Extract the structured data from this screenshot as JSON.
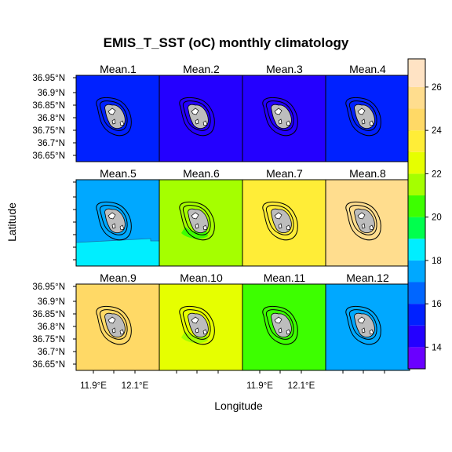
{
  "chart_data": {
    "type": "heatmap",
    "title": "EMIS_T_SST (oC) monthly climatology",
    "xlabel": "Longitude",
    "ylabel": "Latitude",
    "x_ticks": [
      "11.9°E",
      "12.1°E"
    ],
    "y_ticks": [
      "36.95°N",
      "36.9°N",
      "36.85°N",
      "36.8°N",
      "36.75°N",
      "36.7°N",
      "36.65°N"
    ],
    "colorbar": {
      "ticks": [
        14,
        16,
        18,
        20,
        22,
        24,
        26
      ],
      "range": [
        13,
        27.3
      ],
      "levels": [
        {
          "from": 13,
          "to": 14,
          "color": "#6a00ff"
        },
        {
          "from": 14,
          "to": 15,
          "color": "#2400ff"
        },
        {
          "from": 15,
          "to": 16,
          "color": "#0021ff"
        },
        {
          "from": 16,
          "to": 17,
          "color": "#0066ff"
        },
        {
          "from": 17,
          "to": 18,
          "color": "#00a8ff"
        },
        {
          "from": 18,
          "to": 19,
          "color": "#00eeff"
        },
        {
          "from": 19,
          "to": 20,
          "color": "#00ff4d"
        },
        {
          "from": 20,
          "to": 21,
          "color": "#3dff00"
        },
        {
          "from": 21,
          "to": 22,
          "color": "#a5ff00"
        },
        {
          "from": 22,
          "to": 23,
          "color": "#e6ff00"
        },
        {
          "from": 23,
          "to": 24,
          "color": "#ffed37"
        },
        {
          "from": 24,
          "to": 25,
          "color": "#ffd966"
        },
        {
          "from": 25,
          "to": 26,
          "color": "#ffdd8e"
        },
        {
          "from": 26,
          "to": 27.3,
          "color": "#ffe3c4"
        }
      ]
    },
    "panels": [
      {
        "label": "Mean.1",
        "color": "#0021ff",
        "value": 15.5
      },
      {
        "label": "Mean.2",
        "color": "#2400ff",
        "value": 14.5
      },
      {
        "label": "Mean.3",
        "color": "#2400ff",
        "value": 14.5
      },
      {
        "label": "Mean.4",
        "color": "#0021ff",
        "value": 15.5
      },
      {
        "label": "Mean.5",
        "color": "#00a8ff",
        "value": 17.5,
        "south_color": "#00eeff"
      },
      {
        "label": "Mean.6",
        "color": "#a5ff00",
        "value": 21.5,
        "near_island_color": "#3dff00"
      },
      {
        "label": "Mean.7",
        "color": "#ffed37",
        "value": 23.5
      },
      {
        "label": "Mean.8",
        "color": "#ffdd8e",
        "value": 25.5
      },
      {
        "label": "Mean.9",
        "color": "#ffd966",
        "value": 24.5
      },
      {
        "label": "Mean.10",
        "color": "#e6ff00",
        "value": 22.5,
        "near_island_color": "#a5ff00"
      },
      {
        "label": "Mean.11",
        "color": "#3dff00",
        "value": 20.5
      },
      {
        "label": "Mean.12",
        "color": "#00a8ff",
        "value": 17.5
      }
    ]
  }
}
